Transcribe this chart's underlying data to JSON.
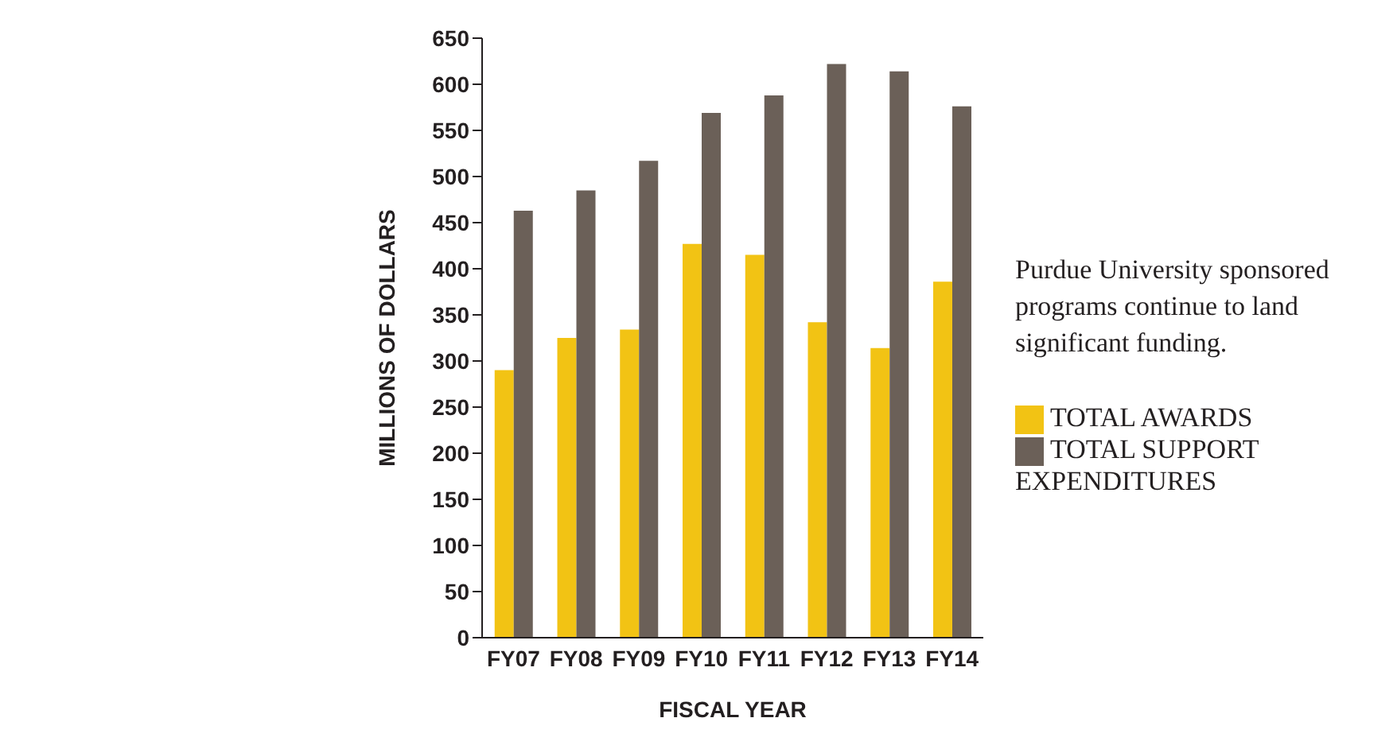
{
  "chart_data": {
    "type": "bar",
    "xlabel": "FISCAL YEAR",
    "ylabel": "MILLIONS OF DOLLARS",
    "categories": [
      "FY07",
      "FY08",
      "FY09",
      "FY10",
      "FY11",
      "FY12",
      "FY13",
      "FY14"
    ],
    "series": [
      {
        "name": "TOTAL AWARDS",
        "color": "#f2c314",
        "values": [
          290,
          325,
          334,
          427,
          415,
          342,
          314,
          386
        ]
      },
      {
        "name": "TOTAL SUPPORT EXPENDITURES",
        "color": "#6b6058",
        "values": [
          463,
          485,
          517,
          569,
          588,
          622,
          614,
          576
        ]
      }
    ],
    "ylim": [
      0,
      650
    ],
    "yticks": [
      0,
      50,
      100,
      150,
      200,
      250,
      300,
      350,
      400,
      450,
      500,
      550,
      600,
      650
    ],
    "grid": false,
    "legend": "right",
    "annotations": [
      "Purdue University sponsored programs continue to land significant funding."
    ]
  }
}
